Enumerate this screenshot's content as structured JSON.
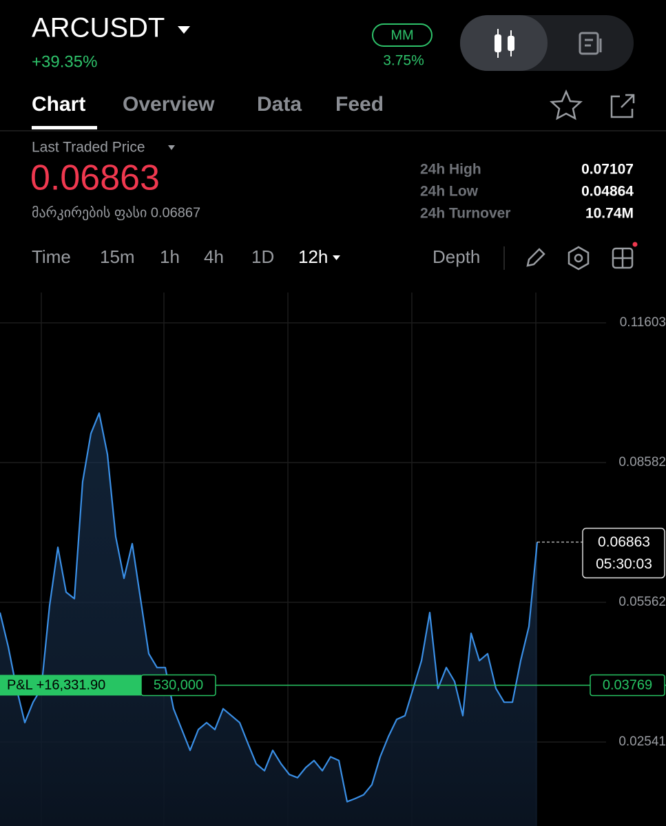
{
  "header": {
    "symbol": "ARCUSDT",
    "change": "+39.35%",
    "mm_label": "MM",
    "mm_value": "3.75%"
  },
  "tabs": [
    "Chart",
    "Overview",
    "Data",
    "Feed"
  ],
  "price": {
    "label": "Last Traded Price",
    "value": "0.06863",
    "mark_price": "მარკირების ფასი 0.06867"
  },
  "stats": [
    {
      "label": "24h High",
      "value": "0.07107"
    },
    {
      "label": "24h Low",
      "value": "0.04864"
    },
    {
      "label": "24h Turnover",
      "value": "10.74M"
    }
  ],
  "intervals": [
    "Time",
    "15m",
    "1h",
    "4h",
    "1D",
    "12h"
  ],
  "depth": "Depth",
  "chart_data": {
    "type": "line",
    "color": "#3a8fe6",
    "grid": true,
    "values": [
      0.0534,
      0.046,
      0.037,
      0.0296,
      0.034,
      0.037,
      0.0549,
      0.0675,
      0.0578,
      0.0564,
      0.0817,
      0.0921,
      0.0965,
      0.0876,
      0.0698,
      0.0608,
      0.0683,
      0.0564,
      0.0445,
      0.0415,
      0.0415,
      0.0326,
      0.0281,
      0.0236,
      0.0281,
      0.0296,
      0.0281,
      0.0326,
      0.0311,
      0.0296,
      0.0251,
      0.0207,
      0.0192,
      0.0236,
      0.0207,
      0.0184,
      0.0177,
      0.0199,
      0.0214,
      0.0192,
      0.0222,
      0.0214,
      0.0125,
      0.0132,
      0.014,
      0.0162,
      0.0222,
      0.0266,
      0.0303,
      0.0311,
      0.037,
      0.043,
      0.0534,
      0.037,
      0.0415,
      0.0385,
      0.0311,
      0.0489,
      0.043,
      0.0445,
      0.037,
      0.034,
      0.034,
      0.043,
      0.0504,
      0.06863
    ],
    "ylim": [
      0.00725,
      0.12258
    ],
    "yticks": [
      0.11603,
      0.08582,
      0.05562,
      0.02541
    ],
    "position": {
      "label": "P&L +16,331.90",
      "size": "530,000",
      "price": 0.03769,
      "color": "#27c463"
    },
    "last": {
      "price": 0.06863,
      "countdown": "05:30:03"
    }
  }
}
